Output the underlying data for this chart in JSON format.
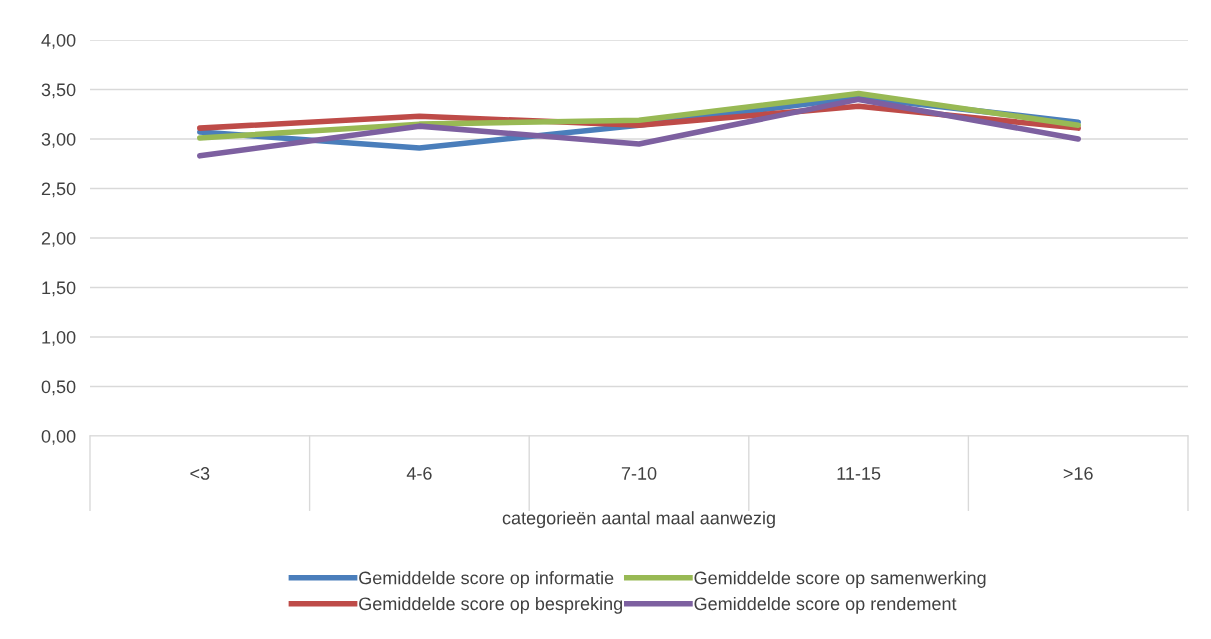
{
  "chart_data": {
    "type": "line",
    "xlabel": "categorieën aantal maal aanwezig",
    "categories": [
      "<3",
      "4-6",
      "7-10",
      "11-15",
      ">16"
    ],
    "series": [
      {
        "name": "Gemiddelde score op informatie",
        "color": "#4a7ebb",
        "values": [
          3.07,
          2.91,
          3.14,
          3.42,
          3.17
        ]
      },
      {
        "name": "Gemiddelde score op bespreking",
        "color": "#be4b48",
        "values": [
          3.11,
          3.23,
          3.14,
          3.33,
          3.11
        ]
      },
      {
        "name": "Gemiddelde score op samenwerking",
        "color": "#98b954",
        "values": [
          3.01,
          3.15,
          3.19,
          3.46,
          3.14
        ]
      },
      {
        "name": "Gemiddelde score op rendement",
        "color": "#7d60a0",
        "values": [
          2.83,
          3.13,
          2.95,
          3.4,
          3.0
        ]
      }
    ],
    "ylim": [
      0,
      4
    ],
    "yticks": [
      {
        "value": 0,
        "label": "0,00"
      },
      {
        "value": 0.5,
        "label": "0,50"
      },
      {
        "value": 1,
        "label": "1,00"
      },
      {
        "value": 1.5,
        "label": "1,50"
      },
      {
        "value": 2,
        "label": "2,00"
      },
      {
        "value": 2.5,
        "label": "2,50"
      },
      {
        "value": 3,
        "label": "3,00"
      },
      {
        "value": 3.5,
        "label": "3,50"
      },
      {
        "value": 4,
        "label": "4,00"
      }
    ],
    "grid": "y",
    "legend": "bottom",
    "marker": "none",
    "line_style": "solid"
  }
}
